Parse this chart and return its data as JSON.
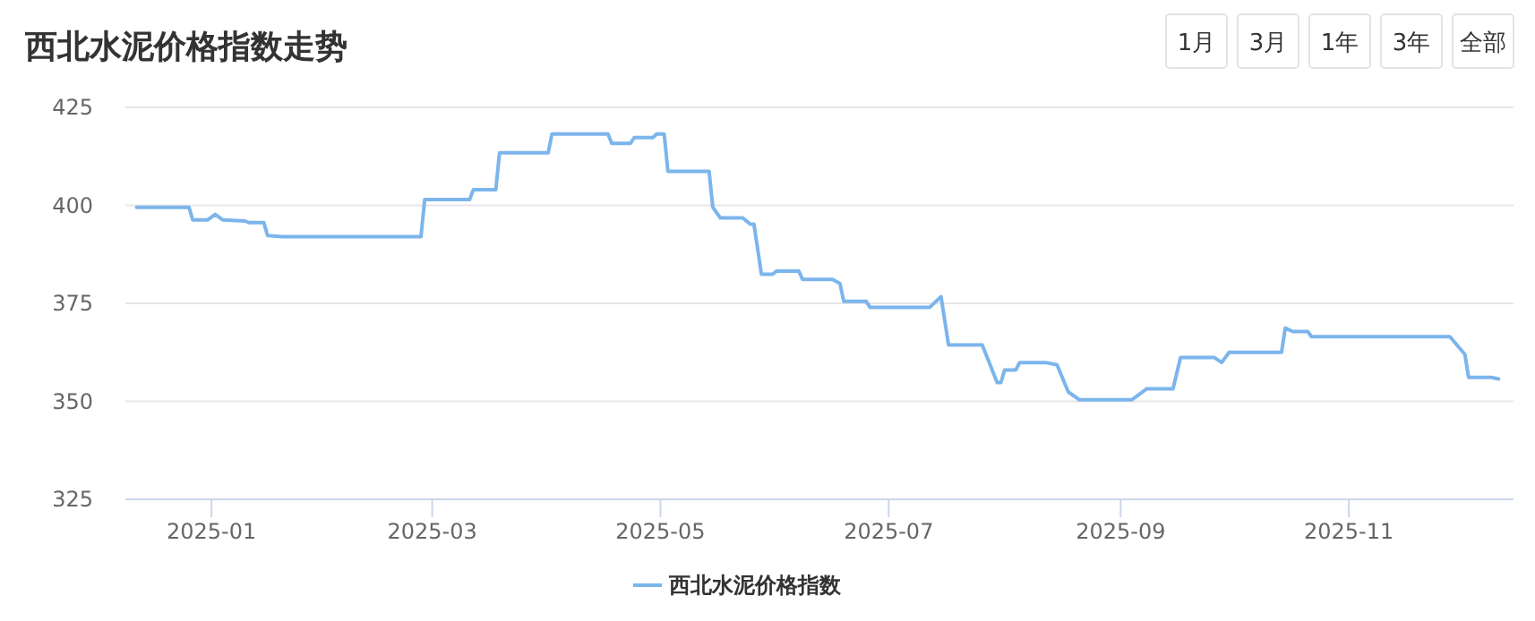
{
  "chart_data": {
    "type": "line",
    "title": "西北水泥价格指数走势",
    "annotations": [
      "1月",
      "3月",
      "1年",
      "3年",
      "全部"
    ],
    "xlim": [
      "2024-12-09",
      "2025-12-15"
    ],
    "xticks": [
      "2025-01",
      "2025-03",
      "2025-05",
      "2025-07",
      "2025-09",
      "2025-11"
    ],
    "ylim": [
      325,
      425
    ],
    "yticks": [
      325,
      350,
      375,
      400,
      425
    ],
    "grid": "y",
    "legend": "bottom",
    "marker": "none",
    "line_style": "solid",
    "series": [
      {
        "name": "西北水泥价格指数",
        "color": "#7cb5ec",
        "x": [
          "2024-12-12",
          "2024-12-26",
          "2024-12-27",
          "2024-12-31",
          "2025-01-02",
          "2025-01-04",
          "2025-01-10",
          "2025-01-11",
          "2025-01-15",
          "2025-01-16",
          "2025-01-20",
          "2025-02-26",
          "2025-02-27",
          "2025-03-11",
          "2025-03-12",
          "2025-03-18",
          "2025-03-19",
          "2025-04-01",
          "2025-04-02",
          "2025-04-17",
          "2025-04-18",
          "2025-04-23",
          "2025-04-24",
          "2025-04-29",
          "2025-04-30",
          "2025-05-02",
          "2025-05-03",
          "2025-05-14",
          "2025-05-15",
          "2025-05-17",
          "2025-05-23",
          "2025-05-25",
          "2025-05-26",
          "2025-05-28",
          "2025-05-31",
          "2025-06-01",
          "2025-06-07",
          "2025-06-08",
          "2025-06-16",
          "2025-06-18",
          "2025-06-19",
          "2025-06-25",
          "2025-06-26",
          "2025-07-12",
          "2025-07-15",
          "2025-07-17",
          "2025-07-26",
          "2025-07-30",
          "2025-07-31",
          "2025-08-01",
          "2025-08-04",
          "2025-08-05",
          "2025-08-12",
          "2025-08-15",
          "2025-08-18",
          "2025-08-21",
          "2025-09-04",
          "2025-09-08",
          "2025-09-15",
          "2025-09-17",
          "2025-09-26",
          "2025-09-28",
          "2025-09-30",
          "2025-10-14",
          "2025-10-15",
          "2025-10-17",
          "2025-10-21",
          "2025-10-22",
          "2025-11-28",
          "2025-12-02",
          "2025-12-03",
          "2025-12-09",
          "2025-12-11"
        ],
        "values": [
          399.5,
          399.5,
          396.3,
          396.3,
          397.7,
          396.3,
          396,
          395.6,
          395.6,
          392.3,
          392,
          392,
          401.5,
          401.5,
          404,
          404,
          413.4,
          413.4,
          418.2,
          418.2,
          415.8,
          415.8,
          417.3,
          417.3,
          418.2,
          418.2,
          408.7,
          408.7,
          399.5,
          396.8,
          396.8,
          395.2,
          395.2,
          382.4,
          382.4,
          383.2,
          383.2,
          381.1,
          381.1,
          380,
          375.5,
          375.5,
          374,
          374,
          376.7,
          364.4,
          364.4,
          354.8,
          354.8,
          358,
          358,
          359.9,
          359.9,
          359.3,
          352.4,
          350.4,
          350.4,
          353.2,
          353.2,
          361.2,
          361.2,
          359.9,
          362.5,
          362.5,
          368.7,
          367.8,
          367.8,
          366.5,
          366.5,
          362,
          356.1,
          356.1,
          355.7
        ]
      }
    ]
  }
}
